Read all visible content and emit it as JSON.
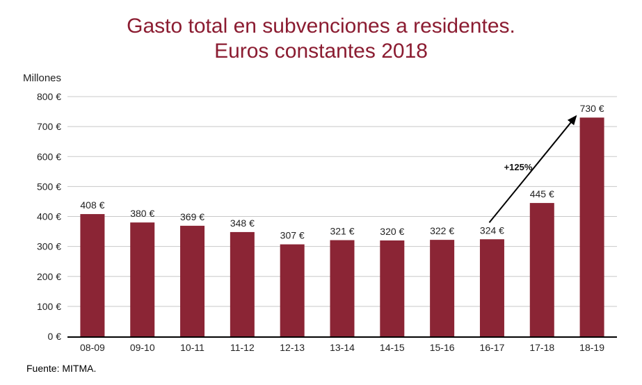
{
  "chart_data": {
    "type": "bar",
    "title": [
      "Gasto total en subvenciones a residentes.",
      "Euros constantes 2018"
    ],
    "ylabel": "Millones",
    "xlabel": "",
    "categories": [
      "08-09",
      "09-10",
      "10-11",
      "11-12",
      "12-13",
      "13-14",
      "14-15",
      "15-16",
      "16-17",
      "17-18",
      "18-19"
    ],
    "values": [
      408,
      380,
      369,
      348,
      307,
      321,
      320,
      322,
      324,
      445,
      730
    ],
    "data_labels": [
      "408 €",
      "380 €",
      "369 €",
      "348 €",
      "307 €",
      "321 €",
      "320 €",
      "322 €",
      "324 €",
      "445 €",
      "730 €"
    ],
    "ylim": [
      0,
      800
    ],
    "yticks": [
      0,
      100,
      200,
      300,
      400,
      500,
      600,
      700,
      800
    ],
    "ytick_labels": [
      "0 €",
      "100 €",
      "200 €",
      "300 €",
      "400 €",
      "500 €",
      "600 €",
      "700 €",
      "800 €"
    ],
    "grid": true,
    "bar_color": "#8b2535",
    "annotation": {
      "text": "+125%",
      "from": "16-17",
      "to": "18-19"
    }
  },
  "source": "Fuente: MITMA."
}
